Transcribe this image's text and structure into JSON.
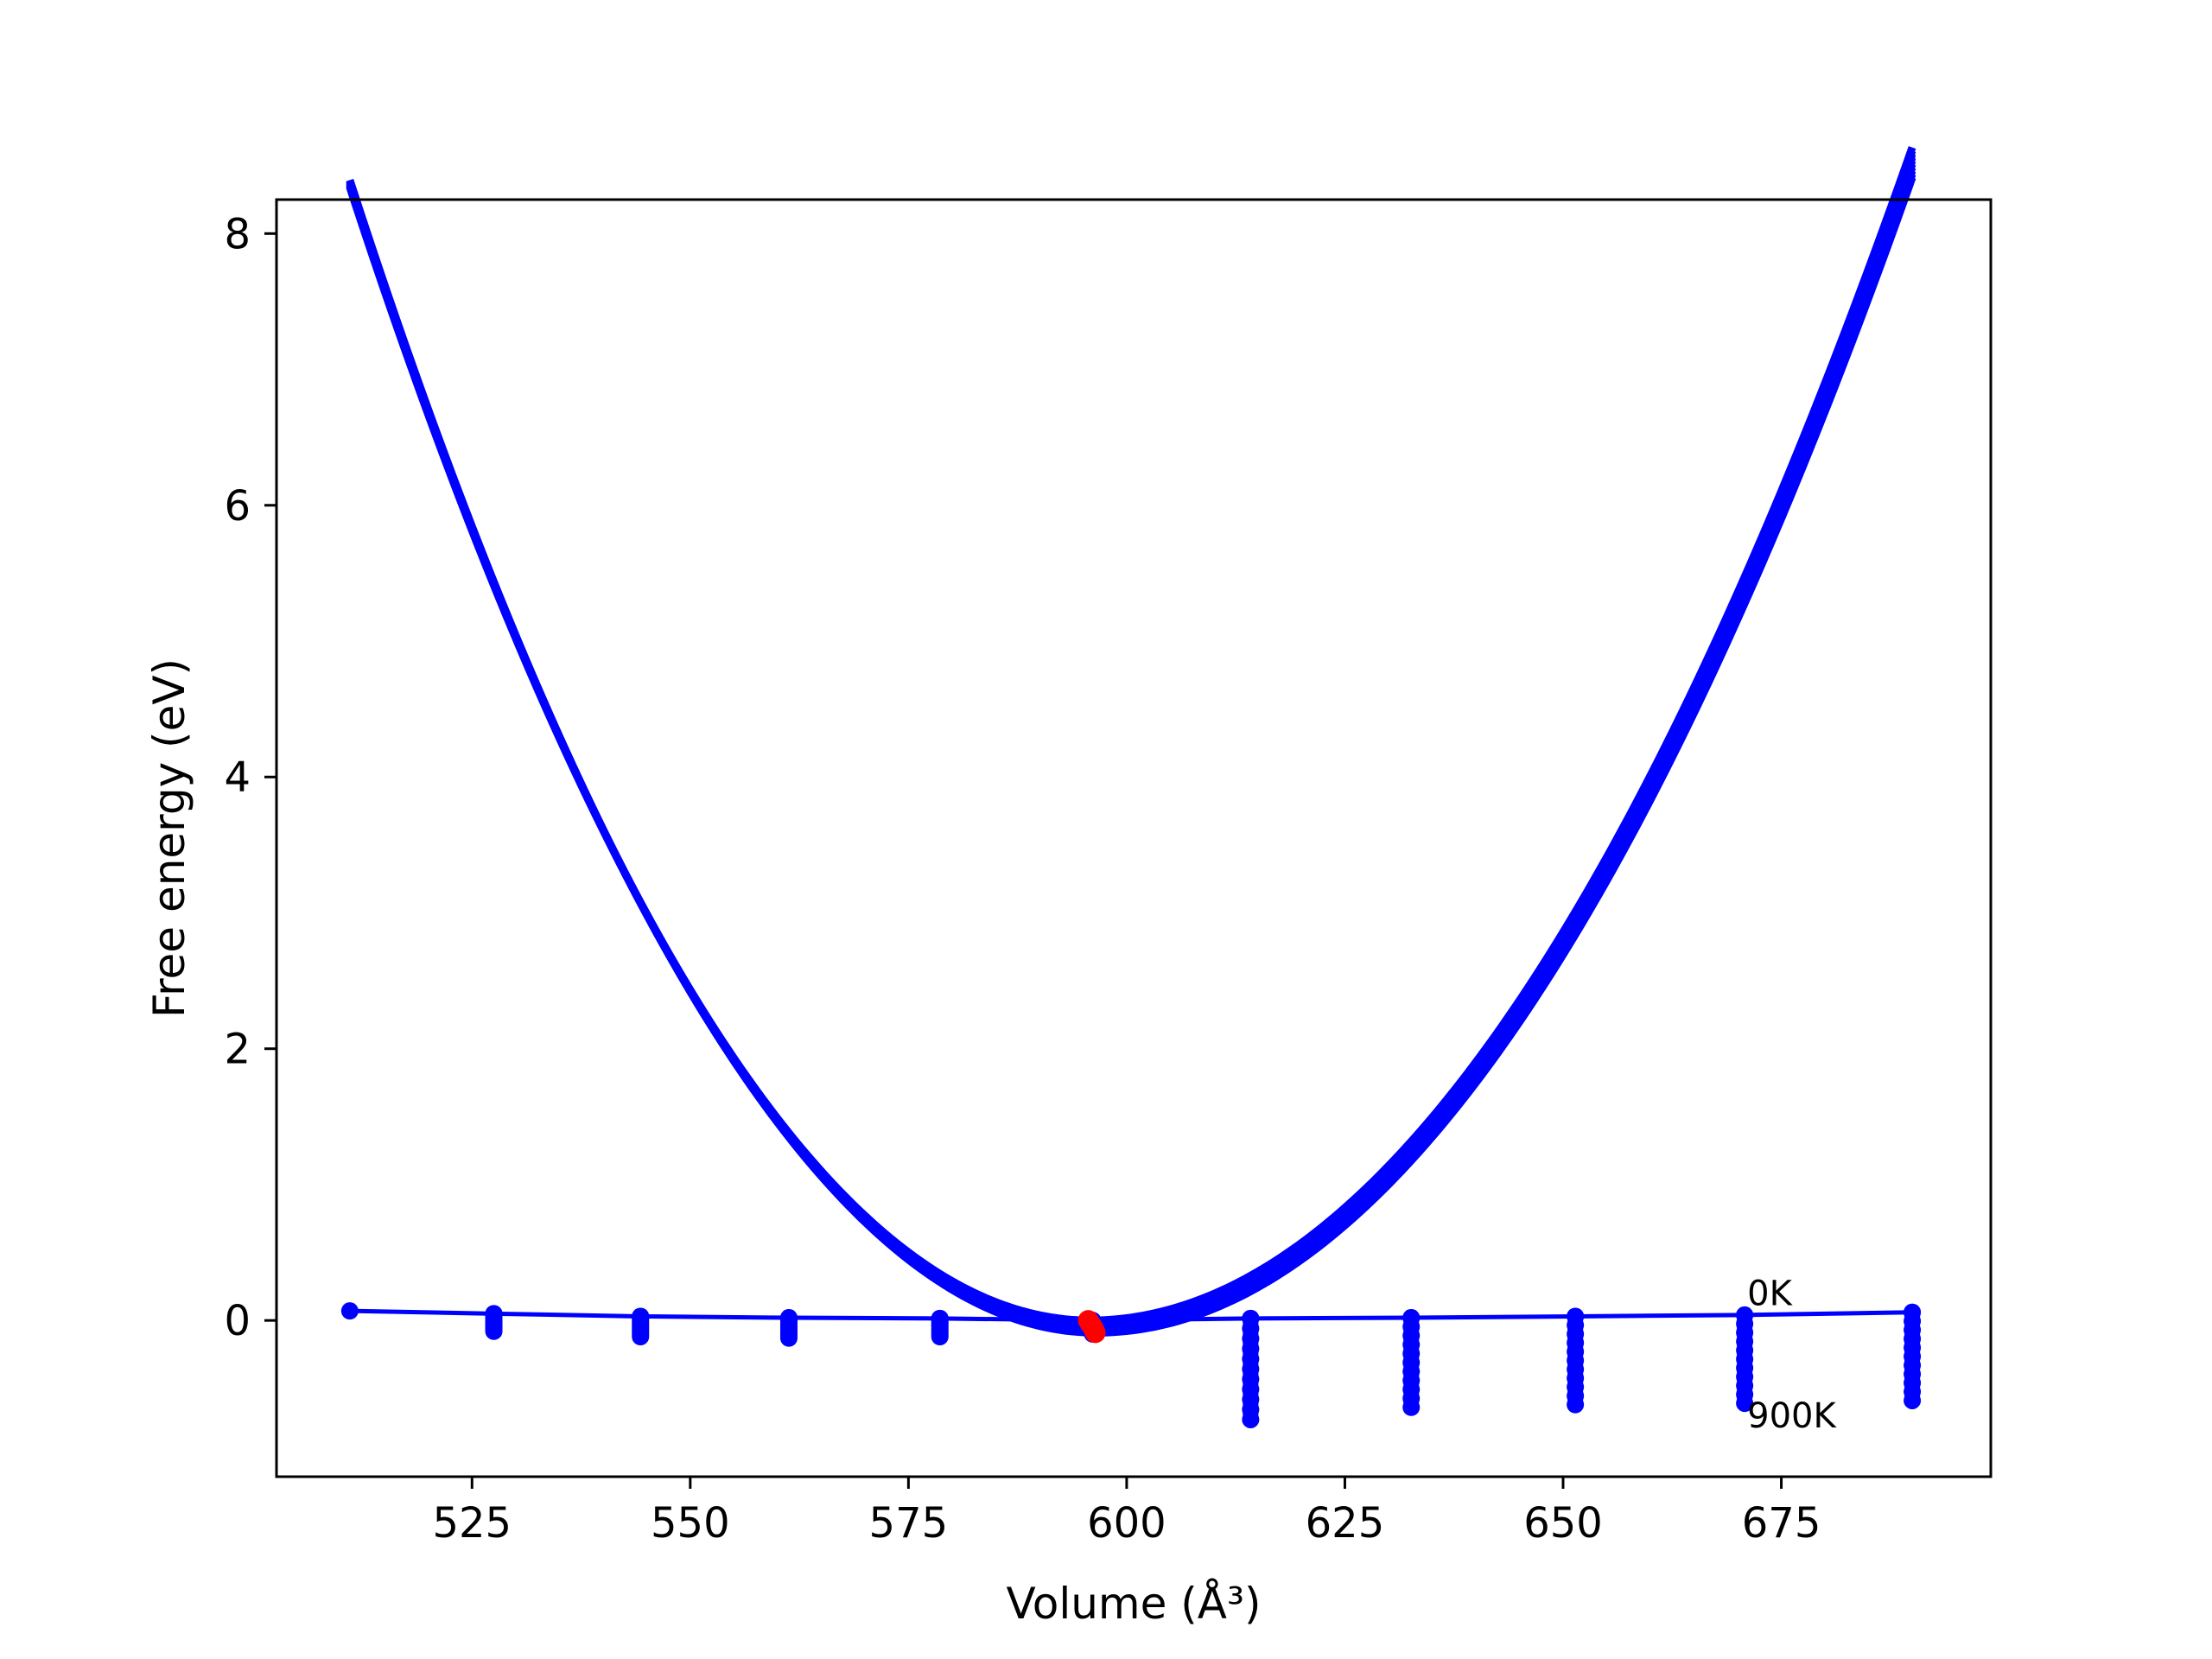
{
  "chart_data": {
    "type": "line",
    "title": "",
    "xlabel": "Volume (Å³)",
    "ylabel": "Free energy (eV)",
    "xlim": [
      502.6,
      699
    ],
    "ylim": [
      -1.15,
      8.25
    ],
    "xticks": [
      525,
      550,
      575,
      600,
      625,
      650,
      675
    ],
    "xtick_labels": [
      "525",
      "550",
      "575",
      "600",
      "625",
      "650",
      "675"
    ],
    "yticks": [
      0,
      2,
      4,
      6,
      8
    ],
    "ytick_labels": [
      "0",
      "2",
      "4",
      "6",
      "8"
    ],
    "grid": false,
    "colors": {
      "curve": "#0000ff",
      "minimum": "#ff0000",
      "frame": "#000000"
    },
    "volumes": [
      511,
      527.5,
      544.3,
      561.3,
      578.6,
      596.1,
      614.2,
      632.6,
      651.4,
      670.8,
      690
    ],
    "series": [
      {
        "label": "0K",
        "x": [
          511,
          527.5,
          544.3,
          561.3,
          578.6,
          596.1,
          614.2,
          632.6,
          651.4,
          670.8,
          690
        ],
        "y": [
          0.07,
          0.05,
          0.03,
          0.02,
          0.015,
          0.0,
          0.015,
          0.02,
          0.03,
          0.04,
          0.06
        ]
      },
      {
        "label": "900K",
        "x": [
          527.5,
          544.3,
          561.3,
          578.6,
          596.1,
          614.2,
          632.6,
          651.4,
          670.8,
          690
        ],
        "y": [
          -0.08,
          -0.12,
          -0.13,
          -0.12,
          -0.1,
          -0.73,
          -0.64,
          -0.62,
          -0.61,
          -0.59
        ]
      }
    ],
    "fit_curve": {
      "v0": 595.8,
      "k_left": 0.00116,
      "k_right": 0.000973
    },
    "minimum_points": {
      "x": [
        595.6,
        595.8,
        596.0,
        596.2,
        596.4
      ],
      "y": [
        0.0,
        -0.02,
        -0.04,
        -0.06,
        -0.09
      ]
    },
    "annotations": [
      {
        "text": "0K",
        "x": 670.8,
        "y": 0.2
      },
      {
        "text": "900K",
        "x": 670.8,
        "y": -0.7
      }
    ]
  }
}
